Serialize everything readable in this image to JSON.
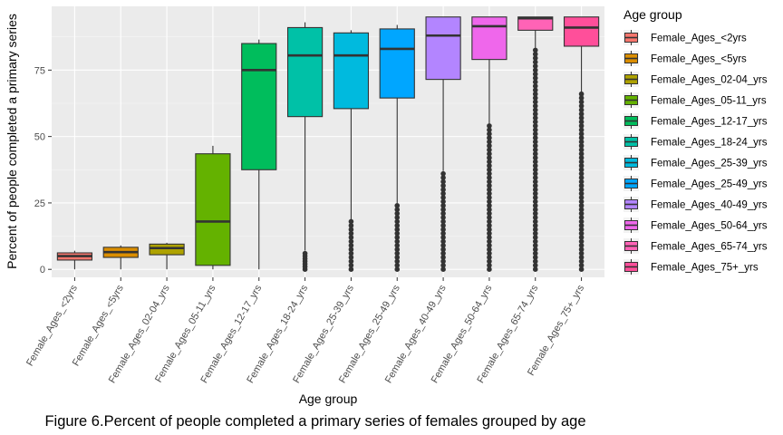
{
  "chart_data": {
    "type": "box",
    "ylabel": "Percent of people completed a primary series",
    "xlabel": "Age group",
    "legend_title": "Age group",
    "legend_position": "right",
    "caption": "Figure 6.Percent of people completed a primary series of females grouped by age",
    "ylim": [
      -3,
      99
    ],
    "yticks": [
      0,
      25,
      50,
      75
    ],
    "ytick_labels": [
      "0",
      "25",
      "50",
      "75"
    ],
    "grid": true,
    "categories": [
      "Female_Ages_<2yrs",
      "Female_Ages_<5yrs",
      "Female_Ages_02-04_yrs",
      "Female_Ages_05-11_yrs",
      "Female_Ages_12-17_yrs",
      "Female_Ages_18-24_yrs",
      "Female_Ages_25-39_yrs",
      "Female_Ages_25-49_yrs",
      "Female_Ages_40-49_yrs",
      "Female_Ages_50-64_yrs",
      "Female_Ages_65-74_yrs",
      "Female_Ages_75+_yrs"
    ],
    "colors": [
      "#F8766D",
      "#DB8E00",
      "#AEA200",
      "#64B200",
      "#00BD5C",
      "#00C1A7",
      "#00BADE",
      "#00A6FF",
      "#B385FF",
      "#EF67EB",
      "#FF63B6",
      "#FF4F9A"
    ],
    "boxes": [
      {
        "min": 0,
        "q1": 3.5,
        "median": 5,
        "q3": 6.2,
        "max": 7,
        "outliers": []
      },
      {
        "min": 0,
        "q1": 4.5,
        "median": 6.5,
        "q3": 8.3,
        "max": 9,
        "outliers": []
      },
      {
        "min": 0,
        "q1": 5.5,
        "median": 8,
        "q3": 9.5,
        "max": 10,
        "outliers": []
      },
      {
        "min": 0,
        "q1": 1.5,
        "median": 18,
        "q3": 43.5,
        "max": 46.5,
        "outliers": []
      },
      {
        "min": 0,
        "q1": 37.5,
        "median": 75,
        "q3": 85,
        "max": 86.5,
        "outliers": []
      },
      {
        "min": 7,
        "q1": 57.5,
        "median": 80.5,
        "q3": 91,
        "max": 93,
        "outliers": [
          0,
          1,
          2,
          3,
          4,
          5,
          6
        ]
      },
      {
        "min": 18,
        "q1": 60.5,
        "median": 80.5,
        "q3": 89,
        "max": 90,
        "outliers": [
          0,
          1.5,
          3,
          4.5,
          6,
          7.5,
          9,
          10.5,
          12,
          13.5,
          15,
          16.5,
          18
        ]
      },
      {
        "min": 25,
        "q1": 64.5,
        "median": 83,
        "q3": 90.5,
        "max": 92,
        "outliers": [
          0,
          1.5,
          3,
          4.5,
          6,
          7.5,
          9,
          10.5,
          12,
          13.5,
          15,
          16.5,
          18,
          19.5,
          21,
          22.5,
          24
        ]
      },
      {
        "min": 37,
        "q1": 71.5,
        "median": 88,
        "q3": 95,
        "max": 95,
        "outliers": [
          0,
          1.5,
          3,
          4.5,
          6,
          7.5,
          9,
          10.5,
          12,
          13.5,
          15,
          16.5,
          18,
          19.5,
          21,
          22.5,
          24,
          25.5,
          27,
          28.5,
          30,
          31.5,
          33,
          34.5,
          36
        ]
      },
      {
        "min": 54,
        "q1": 79,
        "median": 91.5,
        "q3": 95,
        "max": 95,
        "outliers": [
          0,
          1.5,
          3,
          4.5,
          6,
          7.5,
          9,
          10.5,
          12,
          13.5,
          15,
          16.5,
          18,
          19.5,
          21,
          22.5,
          24,
          25.5,
          27,
          28.5,
          30,
          31.5,
          33,
          34.5,
          36,
          37.5,
          39,
          40.5,
          42,
          43.5,
          45,
          46.5,
          48,
          49.5,
          51,
          52.5,
          54
        ]
      },
      {
        "min": 83,
        "q1": 90,
        "median": 94.5,
        "q3": 95,
        "max": 95,
        "outliers": [
          0,
          1.5,
          3,
          4.5,
          6,
          7.5,
          9,
          10.5,
          12,
          13.5,
          15,
          16.5,
          18,
          19.5,
          21,
          22.5,
          24,
          25.5,
          27,
          28.5,
          30,
          31.5,
          33,
          34.5,
          36,
          37.5,
          39,
          40.5,
          42,
          43.5,
          45,
          46.5,
          48,
          49.5,
          51,
          52.5,
          54,
          55.5,
          57,
          58.5,
          60,
          61.5,
          63,
          64.5,
          66,
          67.5,
          69,
          70.5,
          72,
          73.5,
          75,
          76.5,
          78,
          79.5,
          81,
          82.5
        ]
      },
      {
        "min": 66,
        "q1": 84,
        "median": 91,
        "q3": 95,
        "max": 95,
        "outliers": [
          0,
          1.5,
          3,
          4.5,
          6,
          7.5,
          9,
          10.5,
          12,
          13.5,
          15,
          16.5,
          18,
          19.5,
          21,
          22.5,
          24,
          25.5,
          27,
          28.5,
          30,
          31.5,
          33,
          34.5,
          36,
          37.5,
          39,
          40.5,
          42,
          43.5,
          45,
          46.5,
          48,
          49.5,
          51,
          52.5,
          54,
          55.5,
          57,
          58.5,
          60,
          61.5,
          63,
          64.5,
          66
        ]
      }
    ]
  }
}
